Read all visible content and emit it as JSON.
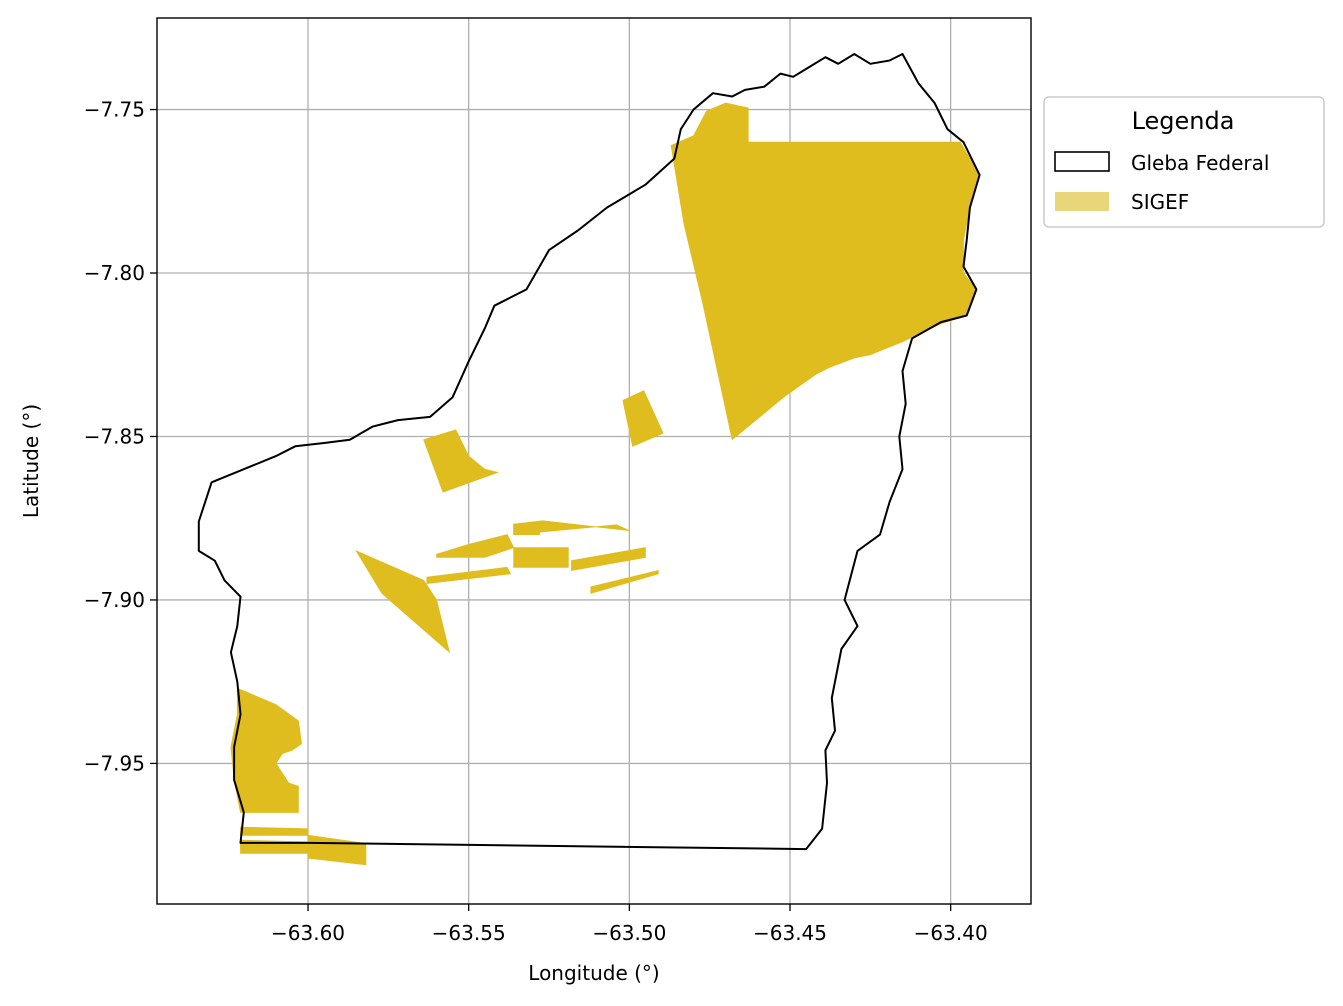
{
  "chart_data": {
    "type": "map",
    "xlabel": "Longitude (°)",
    "ylabel": "Latitude (°)",
    "xlim": [
      -63.647,
      -63.375
    ],
    "ylim": [
      -7.993,
      -7.722
    ],
    "xticks": [
      -63.6,
      -63.55,
      -63.5,
      -63.45,
      -63.4
    ],
    "xtick_labels": [
      "−63.60",
      "−63.55",
      "−63.50",
      "−63.45",
      "−63.40"
    ],
    "yticks": [
      -7.75,
      -7.8,
      -7.85,
      -7.9,
      -7.95
    ],
    "ytick_labels": [
      "−7.75",
      "−7.80",
      "−7.85",
      "−7.90",
      "−7.95"
    ],
    "grid": true,
    "legend": {
      "title": "Legenda",
      "placement": "outside-top-right",
      "items": [
        {
          "label": "Gleba Federal",
          "style": "outline",
          "color": "#000000"
        },
        {
          "label": "SIGEF",
          "style": "fill",
          "color": "#DFBD1F"
        }
      ]
    },
    "colors": {
      "sigef_fill": "#DFBD1F",
      "sigef_legend": "#EAD67A",
      "boundary": "#000000",
      "grid": "#B0B0B0"
    },
    "layers": {
      "gleba_federal": [
        [
          [
            -63.5995,
            -7.9743
          ],
          [
            -63.445,
            -7.9762
          ],
          [
            -63.44,
            -7.97
          ],
          [
            -63.4385,
            -7.956
          ],
          [
            -63.439,
            -7.946
          ],
          [
            -63.436,
            -7.94
          ],
          [
            -63.437,
            -7.93
          ],
          [
            -63.434,
            -7.915
          ],
          [
            -63.429,
            -7.908
          ],
          [
            -63.433,
            -7.9
          ],
          [
            -63.429,
            -7.885
          ],
          [
            -63.422,
            -7.88
          ],
          [
            -63.419,
            -7.87
          ],
          [
            -63.415,
            -7.86
          ],
          [
            -63.416,
            -7.85
          ],
          [
            -63.414,
            -7.84
          ],
          [
            -63.415,
            -7.83
          ],
          [
            -63.412,
            -7.82
          ],
          [
            -63.403,
            -7.815
          ],
          [
            -63.395,
            -7.813
          ],
          [
            -63.392,
            -7.805
          ],
          [
            -63.396,
            -7.798
          ],
          [
            -63.395,
            -7.79
          ],
          [
            -63.394,
            -7.78
          ],
          [
            -63.391,
            -7.77
          ],
          [
            -63.396,
            -7.76
          ],
          [
            -63.401,
            -7.756
          ],
          [
            -63.405,
            -7.748
          ],
          [
            -63.41,
            -7.742
          ],
          [
            -63.415,
            -7.733
          ],
          [
            -63.419,
            -7.735
          ],
          [
            -63.425,
            -7.736
          ],
          [
            -63.43,
            -7.733
          ],
          [
            -63.435,
            -7.736
          ],
          [
            -63.439,
            -7.734
          ],
          [
            -63.444,
            -7.737
          ],
          [
            -63.449,
            -7.74
          ],
          [
            -63.453,
            -7.739
          ],
          [
            -63.458,
            -7.743
          ],
          [
            -63.464,
            -7.744
          ],
          [
            -63.468,
            -7.746
          ],
          [
            -63.474,
            -7.745
          ],
          [
            -63.48,
            -7.75
          ],
          [
            -63.484,
            -7.756
          ],
          [
            -63.486,
            -7.765
          ],
          [
            -63.495,
            -7.773
          ],
          [
            -63.507,
            -7.78
          ],
          [
            -63.516,
            -7.787
          ],
          [
            -63.525,
            -7.793
          ],
          [
            -63.532,
            -7.805
          ],
          [
            -63.538,
            -7.808
          ],
          [
            -63.542,
            -7.81
          ],
          [
            -63.545,
            -7.817
          ],
          [
            -63.55,
            -7.827
          ],
          [
            -63.555,
            -7.838
          ],
          [
            -63.562,
            -7.844
          ],
          [
            -63.572,
            -7.845
          ],
          [
            -63.58,
            -7.847
          ],
          [
            -63.587,
            -7.851
          ],
          [
            -63.595,
            -7.852
          ],
          [
            -63.604,
            -7.853
          ],
          [
            -63.61,
            -7.856
          ],
          [
            -63.62,
            -7.86
          ],
          [
            -63.63,
            -7.864
          ],
          [
            -63.634,
            -7.876
          ],
          [
            -63.634,
            -7.885
          ],
          [
            -63.629,
            -7.888
          ],
          [
            -63.626,
            -7.894
          ],
          [
            -63.621,
            -7.899
          ],
          [
            -63.622,
            -7.908
          ],
          [
            -63.624,
            -7.916
          ],
          [
            -63.622,
            -7.925
          ],
          [
            -63.621,
            -7.935
          ],
          [
            -63.623,
            -7.945
          ],
          [
            -63.623,
            -7.955
          ],
          [
            -63.62,
            -7.965
          ],
          [
            -63.621,
            -7.9743
          ]
        ]
      ],
      "sigef": [
        [
          [
            -63.487,
            -7.761
          ],
          [
            -63.48,
            -7.758
          ],
          [
            -63.476,
            -7.7505
          ],
          [
            -63.47,
            -7.748
          ],
          [
            -63.463,
            -7.7495
          ],
          [
            -63.463,
            -7.76
          ],
          [
            -63.418,
            -7.76
          ],
          [
            -63.397,
            -7.76
          ],
          [
            -63.391,
            -7.77
          ],
          [
            -63.394,
            -7.78
          ],
          [
            -63.396,
            -7.79
          ],
          [
            -63.396,
            -7.8
          ],
          [
            -63.392,
            -7.805
          ],
          [
            -63.395,
            -7.813
          ],
          [
            -63.403,
            -7.8155
          ],
          [
            -63.415,
            -7.821
          ],
          [
            -63.425,
            -7.825
          ],
          [
            -63.43,
            -7.826
          ],
          [
            -63.438,
            -7.829
          ],
          [
            -63.442,
            -7.831
          ],
          [
            -63.452,
            -7.838
          ],
          [
            -63.468,
            -7.851
          ],
          [
            -63.477,
            -7.81
          ],
          [
            -63.483,
            -7.785
          ]
        ],
        [
          [
            -63.502,
            -7.839
          ],
          [
            -63.4955,
            -7.836
          ],
          [
            -63.4895,
            -7.849
          ],
          [
            -63.499,
            -7.853
          ]
        ],
        [
          [
            -63.564,
            -7.851
          ],
          [
            -63.554,
            -7.848
          ],
          [
            -63.55,
            -7.856
          ],
          [
            -63.545,
            -7.86
          ],
          [
            -63.541,
            -7.861
          ],
          [
            -63.558,
            -7.867
          ]
        ],
        [
          [
            -63.536,
            -7.8768
          ],
          [
            -63.527,
            -7.8758
          ],
          [
            -63.5,
            -7.8788
          ],
          [
            -63.504,
            -7.877
          ],
          [
            -63.536,
            -7.88
          ]
        ],
        [
          [
            -63.536,
            -7.8768
          ],
          [
            -63.528,
            -7.877
          ],
          [
            -63.528,
            -7.88
          ],
          [
            -63.536,
            -7.88
          ]
        ],
        [
          [
            -63.56,
            -7.886
          ],
          [
            -63.55,
            -7.883
          ],
          [
            -63.538,
            -7.88
          ],
          [
            -63.536,
            -7.884
          ],
          [
            -63.545,
            -7.887
          ],
          [
            -63.56,
            -7.887
          ]
        ],
        [
          [
            -63.536,
            -7.884
          ],
          [
            -63.519,
            -7.884
          ],
          [
            -63.519,
            -7.89
          ],
          [
            -63.536,
            -7.89
          ]
        ],
        [
          [
            -63.518,
            -7.888
          ],
          [
            -63.495,
            -7.884
          ],
          [
            -63.495,
            -7.887
          ],
          [
            -63.518,
            -7.891
          ]
        ],
        [
          [
            -63.563,
            -7.893
          ],
          [
            -63.538,
            -7.89
          ],
          [
            -63.537,
            -7.892
          ],
          [
            -63.563,
            -7.895
          ]
        ],
        [
          [
            -63.512,
            -7.896
          ],
          [
            -63.491,
            -7.891
          ],
          [
            -63.491,
            -7.892
          ],
          [
            -63.512,
            -7.898
          ]
        ],
        [
          [
            -63.585,
            -7.885
          ],
          [
            -63.564,
            -7.894
          ],
          [
            -63.56,
            -7.9
          ],
          [
            -63.558,
            -7.908
          ],
          [
            -63.556,
            -7.916
          ],
          [
            -63.577,
            -7.898
          ]
        ],
        [
          [
            -63.622,
            -7.927
          ],
          [
            -63.61,
            -7.932
          ],
          [
            -63.603,
            -7.937
          ],
          [
            -63.602,
            -7.944
          ],
          [
            -63.605,
            -7.946
          ],
          [
            -63.608,
            -7.947
          ],
          [
            -63.61,
            -7.95
          ],
          [
            -63.606,
            -7.956
          ],
          [
            -63.603,
            -7.957
          ],
          [
            -63.603,
            -7.965
          ],
          [
            -63.621,
            -7.965
          ],
          [
            -63.623,
            -7.955
          ],
          [
            -63.624,
            -7.945
          ],
          [
            -63.622,
            -7.935
          ]
        ],
        [
          [
            -63.621,
            -7.9695
          ],
          [
            -63.6,
            -7.97
          ],
          [
            -63.6,
            -7.972
          ],
          [
            -63.621,
            -7.972
          ]
        ],
        [
          [
            -63.621,
            -7.9735
          ],
          [
            -63.6,
            -7.974
          ],
          [
            -63.6,
            -7.9775
          ],
          [
            -63.621,
            -7.9775
          ]
        ],
        [
          [
            -63.6,
            -7.972
          ],
          [
            -63.582,
            -7.9745
          ],
          [
            -63.582,
            -7.981
          ],
          [
            -63.6,
            -7.979
          ]
        ]
      ]
    }
  }
}
